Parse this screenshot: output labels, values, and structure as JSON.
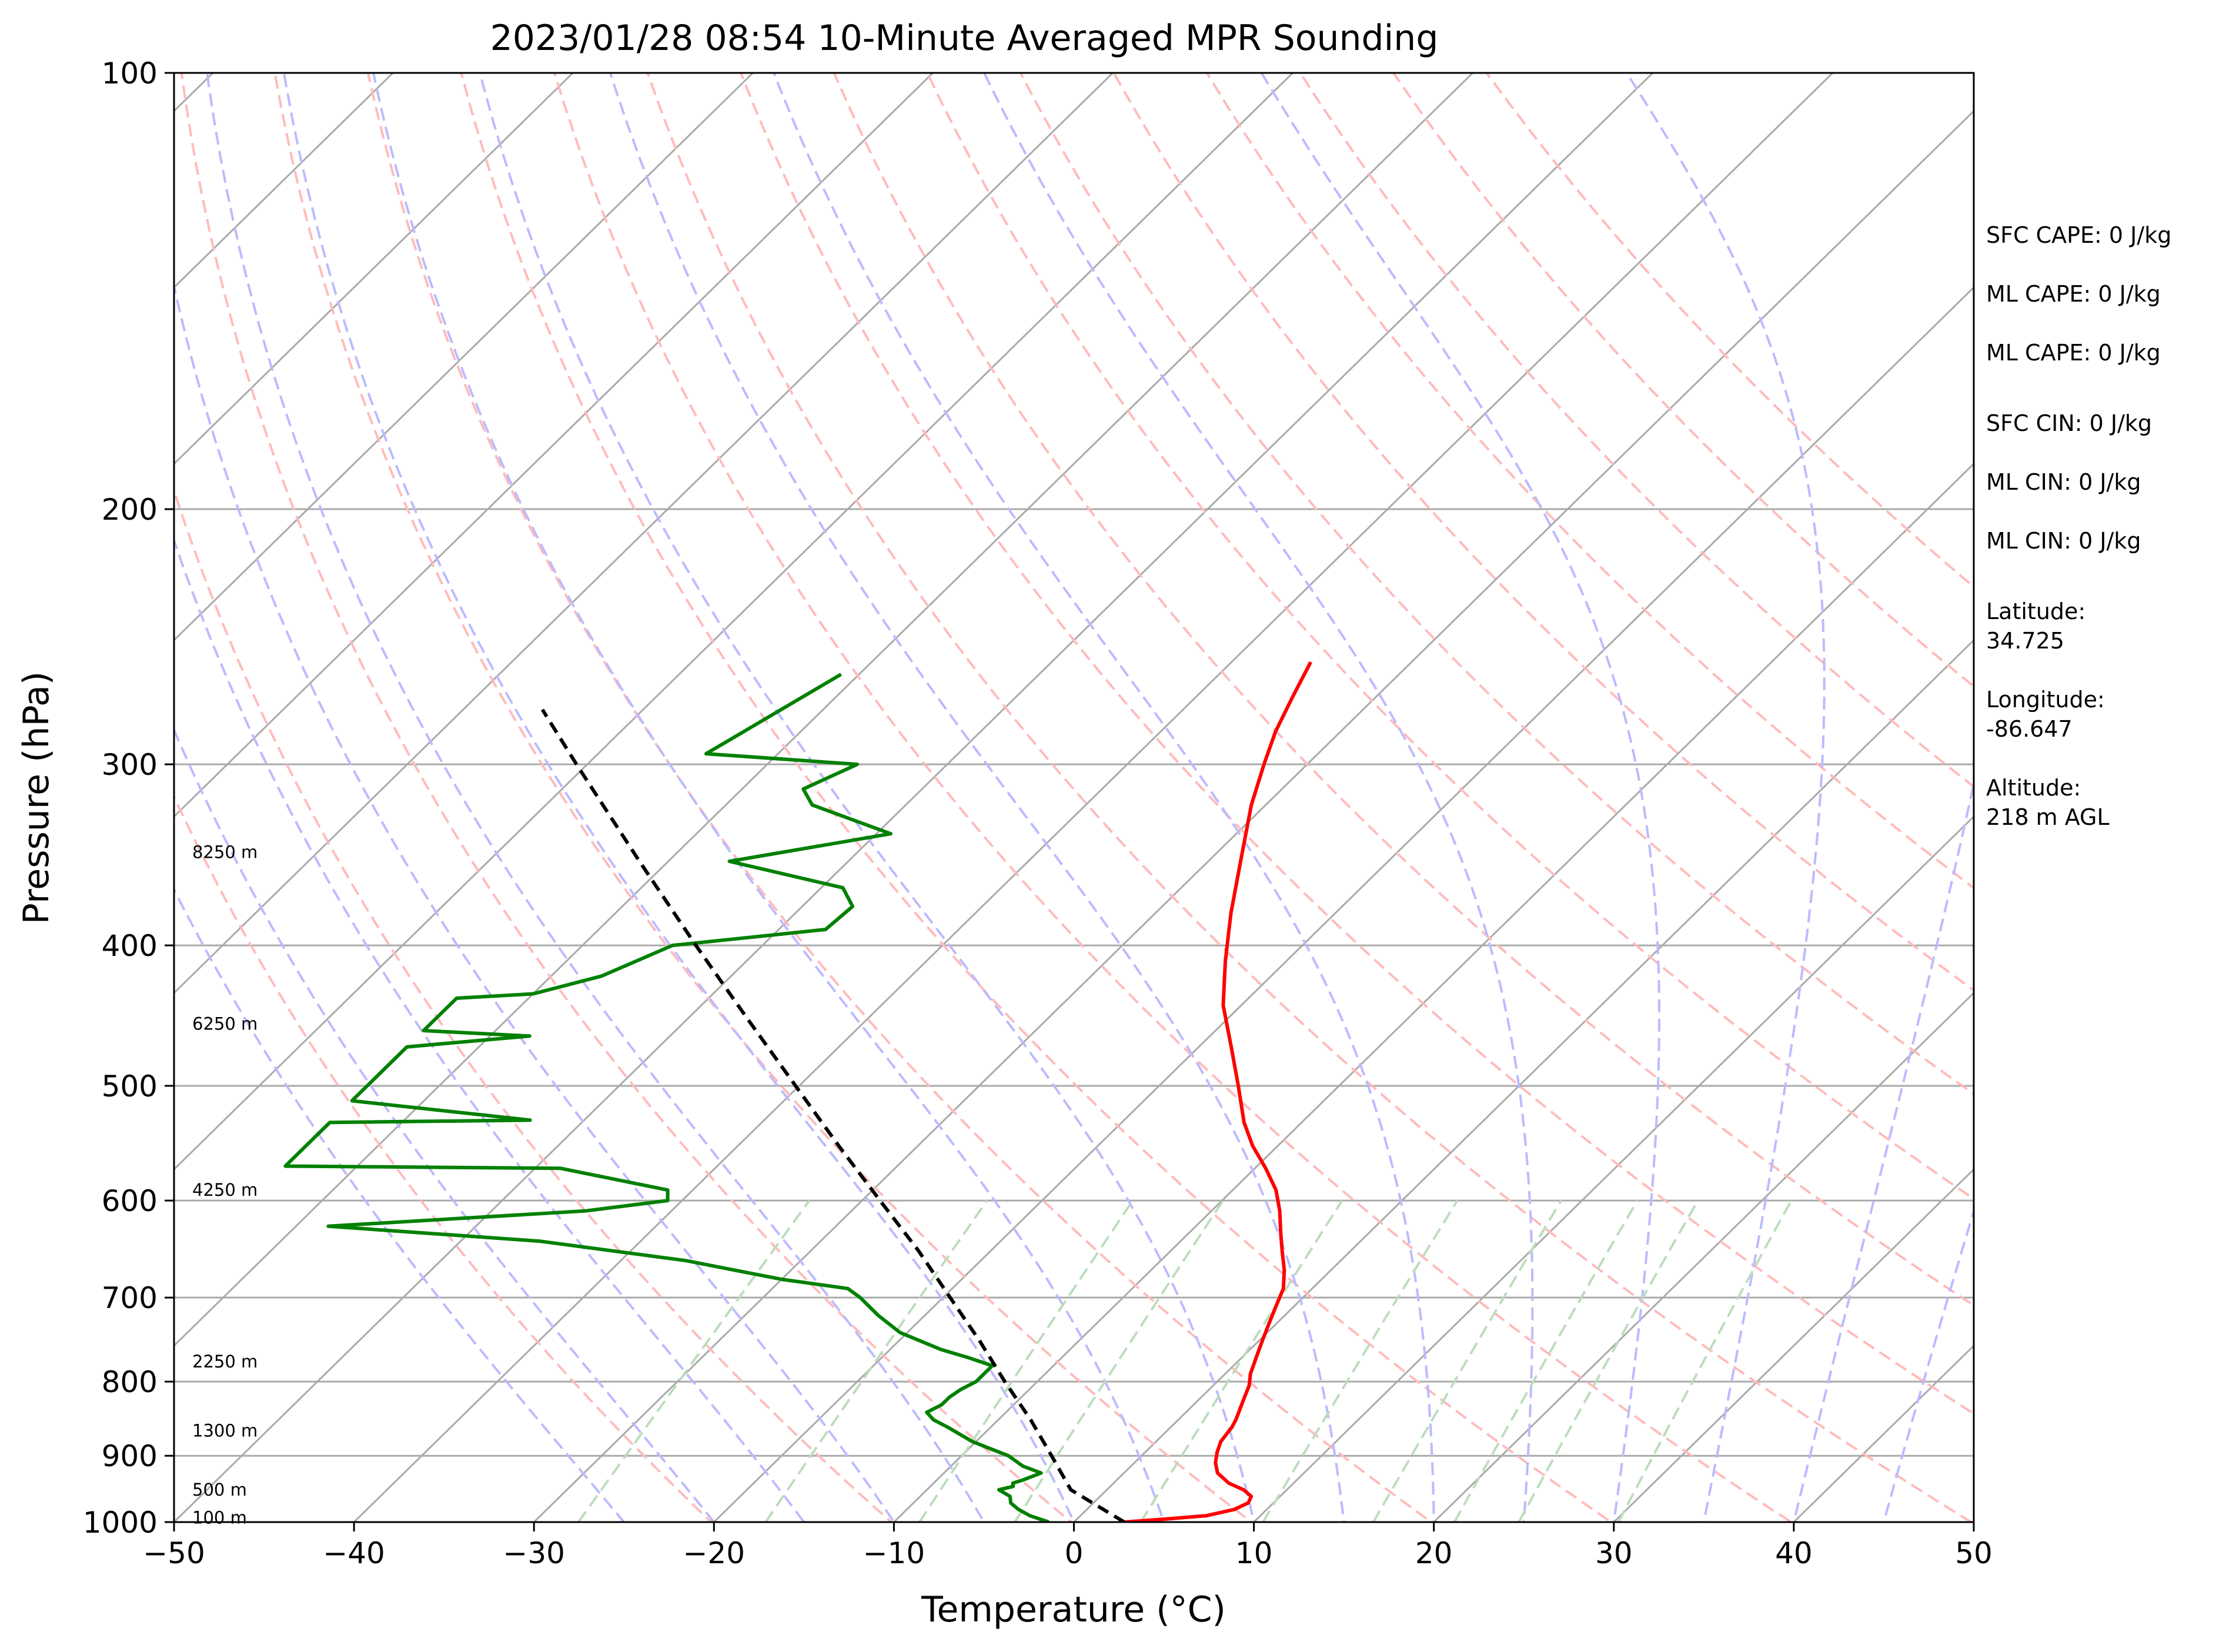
{
  "chart_data": {
    "type": "line",
    "title": "2023/01/28 08:54 10-Minute Averaged MPR Sounding",
    "xlabel": "Temperature (°C)",
    "ylabel": "Pressure (hPa)",
    "xlim": [
      -50,
      50
    ],
    "ylim": [
      1000,
      100
    ],
    "y_scale": "log",
    "skew": "skew-T log-P diagram; isotherms skewed to the right",
    "grid": true,
    "x_ticks": [
      "−50",
      "−40",
      "−30",
      "−20",
      "−10",
      "0",
      "10",
      "20",
      "30",
      "40",
      "50"
    ],
    "x_tick_values": [
      -50,
      -40,
      -30,
      -20,
      -10,
      0,
      10,
      20,
      30,
      40,
      50
    ],
    "y_ticks": [
      "100",
      "200",
      "300",
      "400",
      "500",
      "600",
      "700",
      "800",
      "900",
      "1000"
    ],
    "y_tick_values": [
      100,
      200,
      300,
      400,
      500,
      600,
      700,
      800,
      900,
      1000
    ],
    "series": [
      {
        "kind": "temperature",
        "color": "#ff0000",
        "points": [
          [
            1000,
            2.8
          ],
          [
            995,
            5.0
          ],
          [
            990,
            7.0
          ],
          [
            980,
            8.2
          ],
          [
            970,
            8.6
          ],
          [
            960,
            8.4
          ],
          [
            950,
            7.6
          ],
          [
            940,
            6.4
          ],
          [
            925,
            5.2
          ],
          [
            910,
            4.5
          ],
          [
            895,
            4.0
          ],
          [
            880,
            3.6
          ],
          [
            860,
            3.4
          ],
          [
            850,
            3.2
          ],
          [
            835,
            2.8
          ],
          [
            820,
            2.4
          ],
          [
            805,
            2.0
          ],
          [
            790,
            1.4
          ],
          [
            770,
            0.8
          ],
          [
            750,
            0.2
          ],
          [
            730,
            -0.4
          ],
          [
            710,
            -1.0
          ],
          [
            690,
            -1.6
          ],
          [
            670,
            -2.6
          ],
          [
            650,
            -3.8
          ],
          [
            630,
            -5.0
          ],
          [
            610,
            -6.2
          ],
          [
            590,
            -7.6
          ],
          [
            570,
            -9.4
          ],
          [
            550,
            -11.4
          ],
          [
            530,
            -13.2
          ],
          [
            500,
            -15.6
          ],
          [
            470,
            -18.2
          ],
          [
            440,
            -21.0
          ],
          [
            410,
            -23.4
          ],
          [
            380,
            -25.8
          ],
          [
            350,
            -28.2
          ],
          [
            320,
            -30.8
          ],
          [
            300,
            -32.4
          ],
          [
            285,
            -33.6
          ],
          [
            270,
            -34.6
          ],
          [
            255,
            -35.6
          ]
        ]
      },
      {
        "kind": "dewpoint",
        "color": "#008000",
        "points": [
          [
            1000,
            -1.4
          ],
          [
            990,
            -2.8
          ],
          [
            980,
            -3.8
          ],
          [
            970,
            -4.6
          ],
          [
            960,
            -5.0
          ],
          [
            950,
            -6.0
          ],
          [
            945,
            -5.4
          ],
          [
            940,
            -5.6
          ],
          [
            935,
            -5.2
          ],
          [
            925,
            -4.6
          ],
          [
            915,
            -6.0
          ],
          [
            900,
            -7.4
          ],
          [
            890,
            -8.8
          ],
          [
            880,
            -10.2
          ],
          [
            860,
            -12.4
          ],
          [
            850,
            -13.6
          ],
          [
            840,
            -14.4
          ],
          [
            830,
            -14.0
          ],
          [
            820,
            -14.0
          ],
          [
            810,
            -13.8
          ],
          [
            800,
            -13.4
          ],
          [
            790,
            -13.4
          ],
          [
            780,
            -13.4
          ],
          [
            770,
            -15.2
          ],
          [
            760,
            -17.2
          ],
          [
            740,
            -20.4
          ],
          [
            720,
            -22.6
          ],
          [
            700,
            -24.6
          ],
          [
            690,
            -25.8
          ],
          [
            680,
            -30.0
          ],
          [
            660,
            -36.4
          ],
          [
            640,
            -45.6
          ],
          [
            625,
            -58.2
          ],
          [
            610,
            -44.8
          ],
          [
            600,
            -40.8
          ],
          [
            590,
            -41.4
          ],
          [
            570,
            -48.6
          ],
          [
            568,
            -64.0
          ],
          [
            530,
            -64.0
          ],
          [
            528,
            -53.0
          ],
          [
            512,
            -64.0
          ],
          [
            470,
            -64.0
          ],
          [
            462,
            -57.8
          ],
          [
            458,
            -64.0
          ],
          [
            435,
            -64.0
          ],
          [
            432,
            -60.0
          ],
          [
            420,
            -57.2
          ],
          [
            400,
            -55.0
          ],
          [
            390,
            -47.4
          ],
          [
            376,
            -47.2
          ],
          [
            365,
            -48.8
          ],
          [
            350,
            -56.6
          ],
          [
            335,
            -49.2
          ],
          [
            320,
            -55.2
          ],
          [
            312,
            -56.6
          ],
          [
            300,
            -55.0
          ],
          [
            295,
            -64.0
          ],
          [
            260,
            -61.0
          ]
        ]
      },
      {
        "kind": "parcel",
        "color": "#000000",
        "style": "dashed",
        "points": [
          [
            1000,
            2.8
          ],
          [
            950,
            -2.0
          ],
          [
            900,
            -5.0
          ],
          [
            850,
            -8.2
          ],
          [
            800,
            -11.8
          ],
          [
            750,
            -15.5
          ],
          [
            700,
            -19.6
          ],
          [
            650,
            -24.0
          ],
          [
            600,
            -29.0
          ],
          [
            550,
            -34.4
          ],
          [
            500,
            -40.2
          ],
          [
            450,
            -46.6
          ],
          [
            400,
            -53.7
          ],
          [
            350,
            -61.6
          ],
          [
            300,
            -70.6
          ],
          [
            275,
            -75.6
          ]
        ]
      }
    ],
    "reference_lines": {
      "isotherm_color": "#aaaaaa",
      "dry_adiabat_color": "#ffbbbb",
      "moist_adiabat_color": "#bbbbff",
      "mixing_ratio_color": "#bbddbb",
      "dry_adiabats_theta_K": [
        253,
        263,
        273,
        283,
        293,
        303,
        313,
        323,
        333,
        343,
        353,
        363,
        373,
        383,
        393,
        403,
        413
      ],
      "moist_adiabats_thetaw_C": [
        -25,
        -20,
        -15,
        -10,
        -5,
        0,
        5,
        10,
        15,
        20,
        25,
        30,
        35,
        40,
        45,
        50
      ],
      "mixing_ratios_gkg": [
        0.4,
        1,
        2,
        3,
        5,
        8,
        12,
        16,
        20,
        28
      ]
    },
    "height_labels": [
      {
        "text": "8250 m",
        "pressure": 345
      },
      {
        "text": "6250 m",
        "pressure": 453
      },
      {
        "text": "4250 m",
        "pressure": 590
      },
      {
        "text": "2250 m",
        "pressure": 775
      },
      {
        "text": "1300 m",
        "pressure": 865
      },
      {
        "text": "500 m",
        "pressure": 950
      },
      {
        "text": "100 m",
        "pressure": 993
      }
    ]
  },
  "info_panel": [
    "SFC CAPE: 0 J/kg",
    "ML CAPE: 0 J/kg",
    "ML CAPE: 0 J/kg",
    "SFC CIN: 0 J/kg",
    "ML CIN: 0 J/kg",
    "ML CIN: 0 J/kg",
    "Latitude:",
    "34.725",
    "Longitude:",
    "-86.647",
    "Altitude:",
    "218 m AGL"
  ]
}
